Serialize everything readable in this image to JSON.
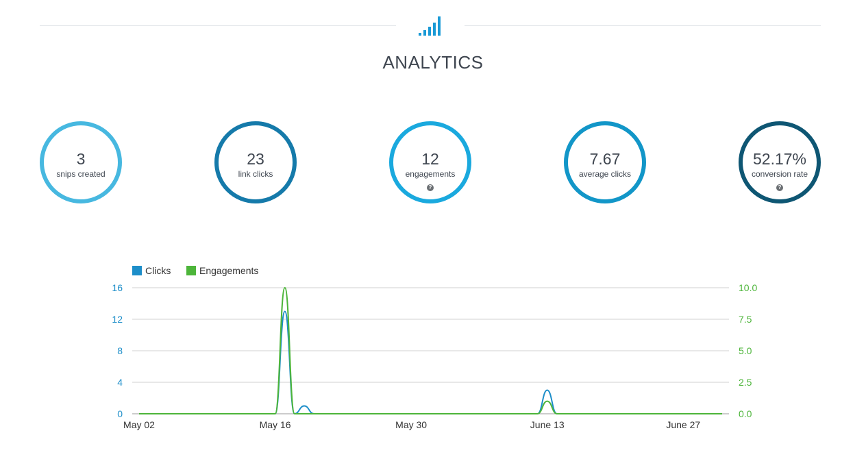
{
  "header": {
    "title": "ANALYTICS",
    "icon": "bar-chart-icon",
    "accent_color": "#1a9ad6"
  },
  "stats": [
    {
      "value": "3",
      "label": "snips created",
      "color": "#47b8e0",
      "help": false
    },
    {
      "value": "23",
      "label": "link clicks",
      "color": "#157aaa",
      "help": false
    },
    {
      "value": "12",
      "label": "engagements",
      "color": "#1aa9de",
      "help": true
    },
    {
      "value": "7.67",
      "label": "average clicks",
      "color": "#1296c8",
      "help": true
    },
    {
      "value": "52.17%",
      "label": "conversion rate",
      "color": "#0e5673",
      "help": true
    }
  ],
  "help_glyph": "?",
  "chart_data": {
    "type": "line",
    "x": [
      "May 02",
      "May 03",
      "May 04",
      "May 05",
      "May 06",
      "May 07",
      "May 08",
      "May 09",
      "May 10",
      "May 11",
      "May 12",
      "May 13",
      "May 14",
      "May 15",
      "May 16",
      "May 17",
      "May 18",
      "May 19",
      "May 20",
      "May 21",
      "May 22",
      "May 23",
      "May 24",
      "May 25",
      "May 26",
      "May 27",
      "May 28",
      "May 29",
      "May 30",
      "May 31",
      "June 01",
      "June 02",
      "June 03",
      "June 04",
      "June 05",
      "June 06",
      "June 07",
      "June 08",
      "June 09",
      "June 10",
      "June 11",
      "June 12",
      "June 13",
      "June 14",
      "June 15",
      "June 16",
      "June 17",
      "June 18",
      "June 19",
      "June 20",
      "June 21",
      "June 22",
      "June 23",
      "June 24",
      "June 25",
      "June 26",
      "June 27",
      "June 28",
      "June 29",
      "June 30",
      "July 01"
    ],
    "x_tick_labels": [
      "May 02",
      "May 16",
      "May 30",
      "June 13",
      "June 27"
    ],
    "series": [
      {
        "name": "Clicks",
        "axis": "left",
        "color": "#1d8ec9",
        "values": [
          0,
          0,
          0,
          0,
          0,
          0,
          0,
          0,
          0,
          0,
          0,
          0,
          0,
          0,
          0,
          13,
          0,
          1,
          0,
          0,
          0,
          0,
          0,
          0,
          0,
          0,
          0,
          0,
          0,
          0,
          0,
          0,
          0,
          0,
          0,
          0,
          0,
          0,
          0,
          0,
          0,
          0,
          3,
          0,
          0,
          0,
          0,
          0,
          0,
          0,
          0,
          0,
          0,
          0,
          0,
          0,
          0,
          0,
          0,
          0,
          0
        ]
      },
      {
        "name": "Engagements",
        "axis": "right",
        "color": "#4db53a",
        "values": [
          0,
          0,
          0,
          0,
          0,
          0,
          0,
          0,
          0,
          0,
          0,
          0,
          0,
          0,
          0,
          10,
          0,
          0,
          0,
          0,
          0,
          0,
          0,
          0,
          0,
          0,
          0,
          0,
          0,
          0,
          0,
          0,
          0,
          0,
          0,
          0,
          0,
          0,
          0,
          0,
          0,
          0,
          1,
          0,
          0,
          0,
          0,
          0,
          0,
          0,
          0,
          0,
          0,
          0,
          0,
          0,
          0,
          0,
          0,
          0,
          0
        ]
      }
    ],
    "left_axis": {
      "ticks": [
        "0",
        "4",
        "8",
        "12",
        "16"
      ],
      "ylim": [
        0,
        16
      ],
      "color": "#1d8ec9"
    },
    "right_axis": {
      "ticks": [
        "0.0",
        "2.5",
        "5.0",
        "7.5",
        "10.0"
      ],
      "ylim": [
        0,
        10
      ],
      "color": "#4db53a"
    },
    "grid": true,
    "legend_position": "top-left"
  }
}
